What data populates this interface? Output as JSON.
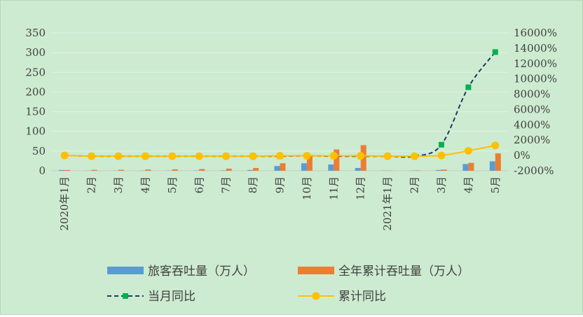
{
  "colors": {
    "background": "#cdebd0",
    "bars_passenger": "#5b9bd5",
    "bars_cumulative": "#ed7d31",
    "line_monthly_yoy": "#203864",
    "line_monthly_marker": "#00b050",
    "line_cumulative_yoy": "#ffc000",
    "gridline": "#e2f1e3",
    "axis_text": "#404040"
  },
  "chart_data": {
    "type": "bar",
    "combo": true,
    "title": "",
    "xlabel": "",
    "ylabel": "",
    "categories": [
      "2020年1月",
      "2月",
      "3月",
      "4月",
      "5月",
      "6月",
      "7月",
      "8月",
      "9月",
      "10月",
      "11月",
      "12月",
      "2021年1月",
      "2月",
      "3月",
      "4月",
      "5月"
    ],
    "ylim": [
      0,
      350
    ],
    "y_ticks": [
      0,
      50,
      100,
      150,
      200,
      250,
      300,
      350
    ],
    "y2lim": [
      -2000,
      16000
    ],
    "y2_ticks": [
      -2000,
      0,
      2000,
      4000,
      6000,
      8000,
      10000,
      12000,
      14000,
      16000
    ],
    "y2_tick_labels": [
      "-2000%",
      "0%",
      "2000%",
      "4000%",
      "6000%",
      "8000%",
      "10000%",
      "12000%",
      "14000%",
      "16000%"
    ],
    "grid": true,
    "legend_position": "bottom",
    "series": [
      {
        "name": "旅客吞吐量（万人）",
        "kind": "bar",
        "axis": "left",
        "color": "#5b9bd5",
        "values": [
          2,
          0.3,
          0.3,
          0.5,
          0.5,
          0.7,
          1,
          2,
          12,
          19,
          16,
          7,
          0.5,
          0.5,
          2,
          17,
          24
        ]
      },
      {
        "name": "全年累计吞吐量（万人）",
        "kind": "bar",
        "axis": "left",
        "color": "#ed7d31",
        "values": [
          2,
          2.3,
          2.6,
          3.1,
          3.6,
          4.3,
          5.3,
          7,
          19,
          38,
          54,
          65,
          0.5,
          1,
          3,
          20,
          44
        ]
      },
      {
        "name": "当月同比",
        "kind": "line",
        "axis": "right",
        "style": "dashed",
        "marker": "square",
        "color": "#203864",
        "values": [
          0,
          -100,
          -100,
          -100,
          -100,
          -100,
          -100,
          -100,
          -100,
          -50,
          -100,
          -100,
          -100,
          -100,
          1400,
          8900,
          13500
        ]
      },
      {
        "name": "累计同比",
        "kind": "line",
        "axis": "right",
        "style": "solid",
        "marker": "circle",
        "color": "#ffc000",
        "values": [
          0,
          -100,
          -100,
          -100,
          -100,
          -100,
          -100,
          -100,
          -50,
          -50,
          -50,
          -50,
          -100,
          -100,
          0,
          600,
          1300
        ]
      }
    ]
  }
}
